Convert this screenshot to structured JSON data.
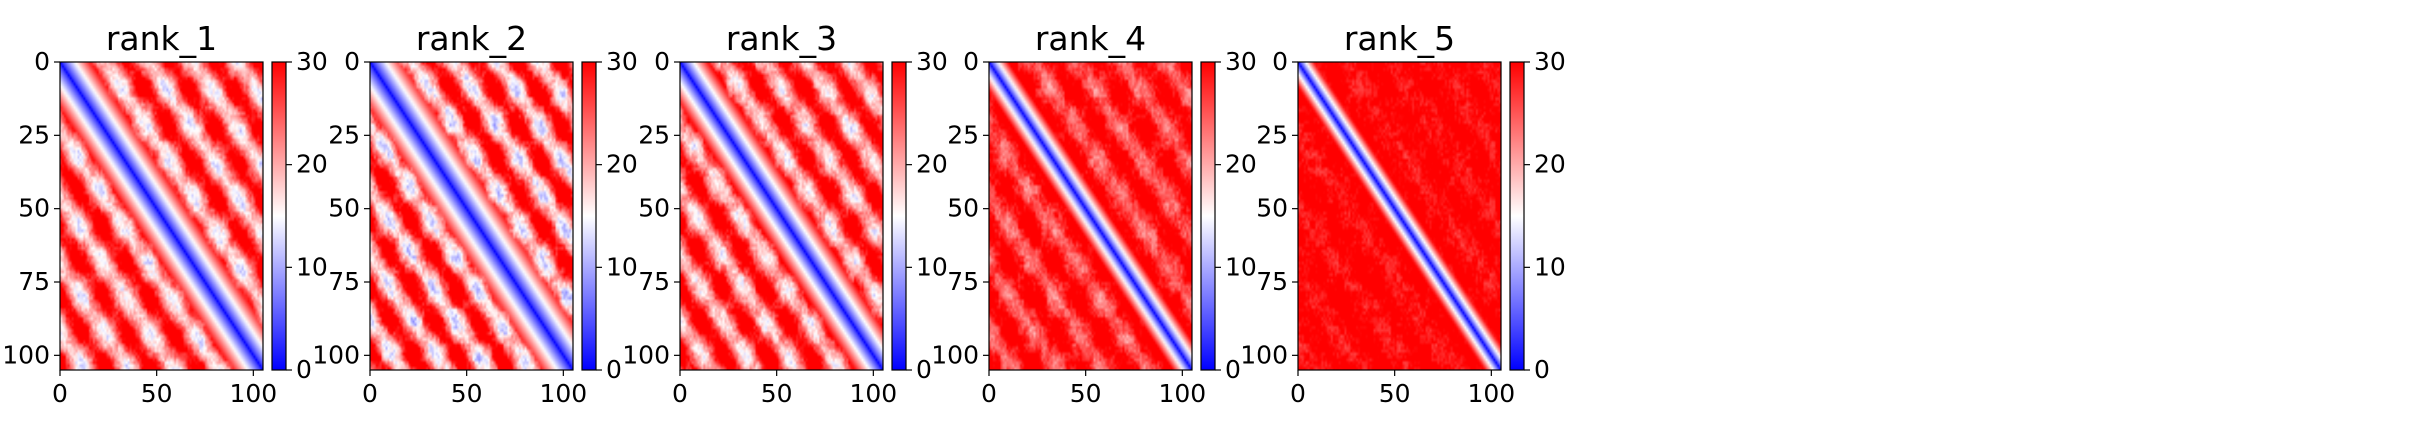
{
  "chart_data": [
    {
      "type": "heatmap",
      "title": "rank_1",
      "matrix_size": 105,
      "xlim": [
        0,
        105
      ],
      "ylim": [
        105,
        0
      ],
      "x_ticks": [
        0,
        50,
        100
      ],
      "y_ticks": [
        0,
        25,
        50,
        75,
        100
      ],
      "colorbar": {
        "min": 0,
        "max": 30,
        "ticks": [
          0,
          10,
          20,
          30
        ],
        "colormap": "bwr"
      },
      "pattern": {
        "diag_width": 3.6,
        "stripe_period": 23,
        "stripe_contrast": 0.9,
        "background": 20,
        "mottle": 2.0
      }
    },
    {
      "type": "heatmap",
      "title": "rank_2",
      "matrix_size": 105,
      "xlim": [
        0,
        105
      ],
      "ylim": [
        105,
        0
      ],
      "x_ticks": [
        0,
        50,
        100
      ],
      "y_ticks": [
        0,
        25,
        50,
        75,
        100
      ],
      "colorbar": {
        "min": 0,
        "max": 30,
        "ticks": [
          0,
          10,
          20,
          30
        ],
        "colormap": "bwr"
      },
      "pattern": {
        "diag_width": 3.8,
        "stripe_period": 22,
        "stripe_contrast": 1.0,
        "background": 20,
        "mottle": 2.4
      }
    },
    {
      "type": "heatmap",
      "title": "rank_3",
      "matrix_size": 105,
      "xlim": [
        0,
        105
      ],
      "ylim": [
        105,
        0
      ],
      "x_ticks": [
        0,
        50,
        100
      ],
      "y_ticks": [
        0,
        25,
        50,
        75,
        100
      ],
      "colorbar": {
        "min": 0,
        "max": 30,
        "ticks": [
          0,
          10,
          20,
          30
        ],
        "colormap": "bwr"
      },
      "pattern": {
        "diag_width": 3.4,
        "stripe_period": 22,
        "stripe_contrast": 0.85,
        "background": 21,
        "mottle": 2.2
      }
    },
    {
      "type": "heatmap",
      "title": "rank_4",
      "matrix_size": 105,
      "xlim": [
        0,
        105
      ],
      "ylim": [
        105,
        0
      ],
      "x_ticks": [
        0,
        50,
        100
      ],
      "y_ticks": [
        0,
        25,
        50,
        75,
        100
      ],
      "colorbar": {
        "min": 0,
        "max": 30,
        "ticks": [
          0,
          10,
          20,
          30
        ],
        "colormap": "bwr"
      },
      "pattern": {
        "diag_width": 2.6,
        "stripe_period": 23,
        "stripe_contrast": 0.45,
        "background": 24,
        "mottle": 2.0
      }
    },
    {
      "type": "heatmap",
      "title": "rank_5",
      "matrix_size": 105,
      "xlim": [
        0,
        105
      ],
      "ylim": [
        105,
        0
      ],
      "x_ticks": [
        0,
        50,
        100
      ],
      "y_ticks": [
        0,
        25,
        50,
        75,
        100
      ],
      "colorbar": {
        "min": 0,
        "max": 30,
        "ticks": [
          0,
          10,
          20,
          30
        ],
        "colormap": "bwr"
      },
      "pattern": {
        "diag_width": 2.4,
        "stripe_period": 24,
        "stripe_contrast": 0.15,
        "background": 26,
        "mottle": 1.6
      }
    }
  ]
}
